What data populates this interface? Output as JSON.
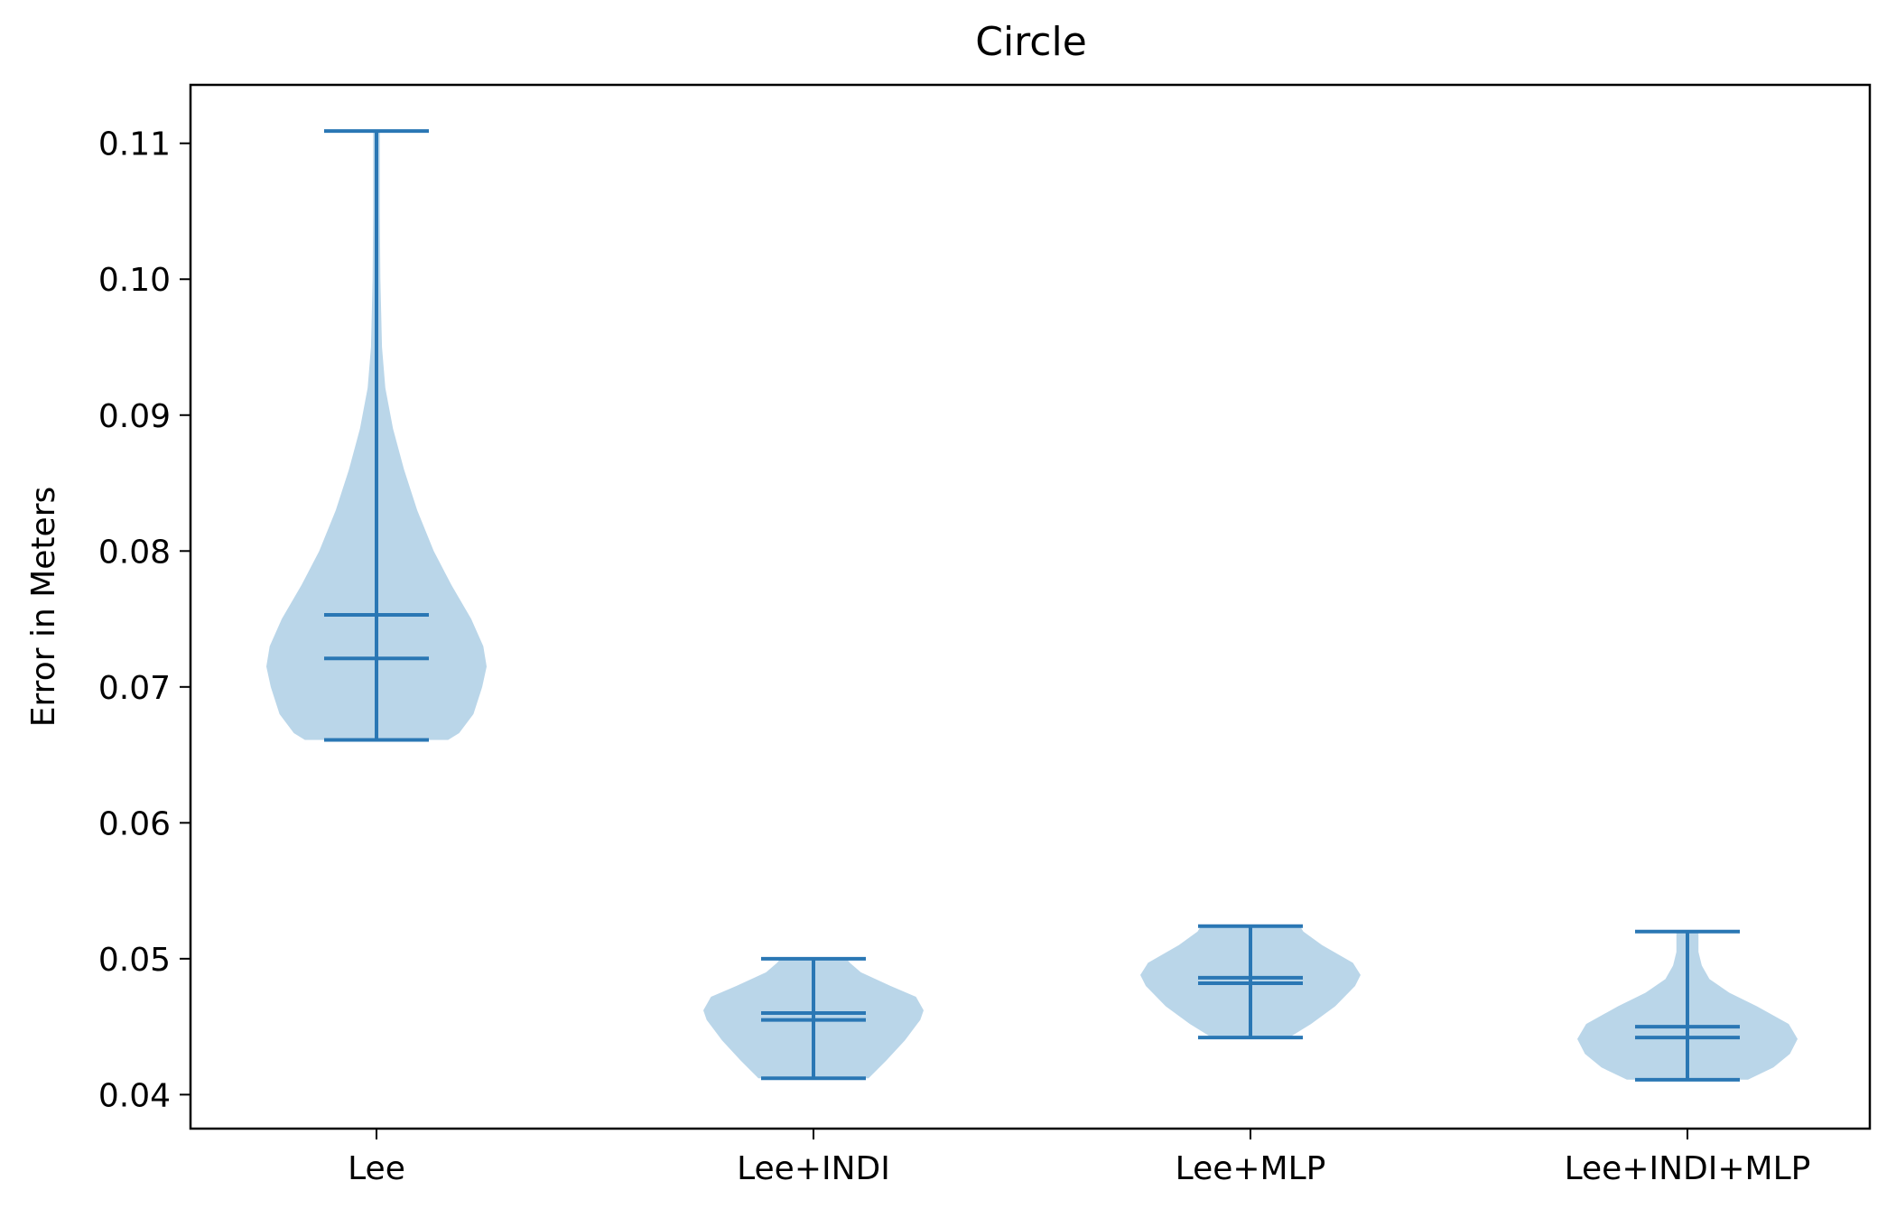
{
  "chart_data": {
    "type": "violin",
    "title": "Circle",
    "xlabel": "",
    "ylabel": "Error in Meters",
    "ylim": [
      0.0375,
      0.1143
    ],
    "yticks": [
      0.04,
      0.05,
      0.06,
      0.07,
      0.08,
      0.09,
      0.1,
      0.11
    ],
    "ytick_labels": [
      "0.04",
      "0.05",
      "0.06",
      "0.07",
      "0.08",
      "0.09",
      "0.10",
      "0.11"
    ],
    "categories": [
      "Lee",
      "Lee+INDI",
      "Lee+MLP",
      "Lee+INDI+MLP"
    ],
    "grid": false,
    "colors": {
      "body": "#bad6e9",
      "line": "#2a77b4",
      "axes": "#000000"
    },
    "violins": [
      {
        "category": "Lee",
        "min": 0.0661,
        "max": 0.1109,
        "mean": 0.0753,
        "median": 0.0721,
        "density": [
          [
            0.0661,
            0.65
          ],
          [
            0.0666,
            0.75
          ],
          [
            0.068,
            0.88
          ],
          [
            0.07,
            0.96
          ],
          [
            0.0715,
            1.0
          ],
          [
            0.073,
            0.97
          ],
          [
            0.075,
            0.86
          ],
          [
            0.0775,
            0.68
          ],
          [
            0.08,
            0.52
          ],
          [
            0.083,
            0.37
          ],
          [
            0.086,
            0.25
          ],
          [
            0.089,
            0.15
          ],
          [
            0.092,
            0.08
          ],
          [
            0.095,
            0.05
          ],
          [
            0.1,
            0.035
          ],
          [
            0.105,
            0.03
          ],
          [
            0.1109,
            0.03
          ]
        ]
      },
      {
        "category": "Lee+INDI",
        "min": 0.0412,
        "max": 0.05,
        "mean": 0.046,
        "median": 0.0455,
        "density": [
          [
            0.0412,
            0.5
          ],
          [
            0.0425,
            0.66
          ],
          [
            0.044,
            0.83
          ],
          [
            0.0455,
            0.97
          ],
          [
            0.0462,
            1.0
          ],
          [
            0.0472,
            0.93
          ],
          [
            0.048,
            0.7
          ],
          [
            0.049,
            0.43
          ],
          [
            0.0497,
            0.33
          ],
          [
            0.05,
            0.3
          ]
        ]
      },
      {
        "category": "Lee+MLP",
        "min": 0.0442,
        "max": 0.0524,
        "mean": 0.0486,
        "median": 0.0482,
        "density": [
          [
            0.0442,
            0.35
          ],
          [
            0.0452,
            0.55
          ],
          [
            0.0465,
            0.77
          ],
          [
            0.048,
            0.95
          ],
          [
            0.0488,
            1.0
          ],
          [
            0.0497,
            0.93
          ],
          [
            0.051,
            0.65
          ],
          [
            0.052,
            0.48
          ],
          [
            0.0524,
            0.45
          ]
        ]
      },
      {
        "category": "Lee+INDI+MLP",
        "min": 0.0411,
        "max": 0.052,
        "mean": 0.045,
        "median": 0.0442,
        "density": [
          [
            0.0411,
            0.55
          ],
          [
            0.042,
            0.78
          ],
          [
            0.043,
            0.93
          ],
          [
            0.0441,
            1.0
          ],
          [
            0.0452,
            0.92
          ],
          [
            0.0465,
            0.63
          ],
          [
            0.0475,
            0.38
          ],
          [
            0.0485,
            0.2
          ],
          [
            0.0495,
            0.13
          ],
          [
            0.0505,
            0.1
          ],
          [
            0.052,
            0.1
          ]
        ]
      }
    ]
  }
}
